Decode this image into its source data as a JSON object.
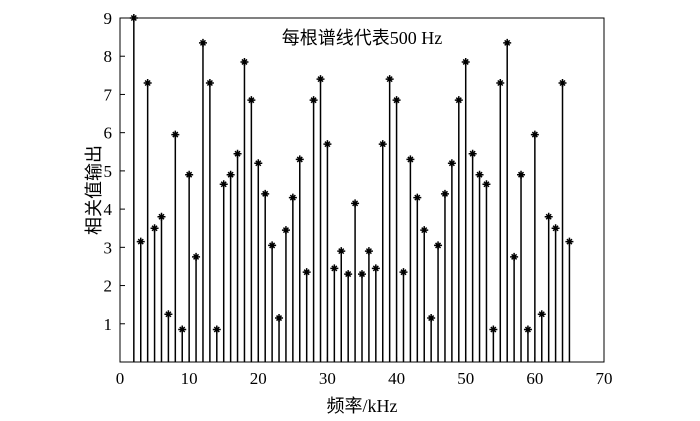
{
  "chart_data": {
    "type": "stem",
    "annotation": "每根谱线代表500 Hz",
    "x_label": "频率/kHz",
    "y_label": "相关值输出",
    "x": [
      2,
      3,
      4,
      5,
      6,
      7,
      8,
      9,
      10,
      11,
      12,
      13,
      14,
      15,
      16,
      17,
      18,
      19,
      20,
      21,
      22,
      23,
      24,
      25,
      26,
      27,
      28,
      29,
      30,
      31,
      32,
      33,
      34,
      35,
      36,
      37,
      38,
      39,
      40,
      41,
      42,
      43,
      44,
      45,
      46,
      47,
      48,
      49,
      50,
      51,
      52,
      53,
      54,
      55,
      56,
      57,
      58,
      59,
      60,
      61,
      62,
      63,
      64,
      65
    ],
    "values": [
      9.0,
      3.15,
      7.3,
      3.5,
      3.8,
      1.25,
      5.95,
      0.85,
      4.9,
      2.75,
      8.35,
      7.3,
      0.85,
      4.65,
      4.9,
      5.45,
      7.85,
      6.85,
      5.2,
      4.4,
      3.05,
      1.15,
      3.45,
      4.3,
      5.3,
      2.35,
      6.85,
      7.4,
      5.7,
      2.45,
      2.9,
      2.3,
      4.15,
      2.3,
      2.9,
      2.45,
      5.7,
      7.4,
      6.85,
      2.35,
      5.3,
      4.3,
      3.45,
      1.15,
      3.05,
      4.4,
      5.2,
      6.85,
      7.85,
      5.45,
      4.9,
      4.65,
      0.85,
      7.3,
      8.35,
      2.75,
      4.9,
      0.85,
      5.95,
      1.25,
      3.8,
      3.5,
      7.3,
      3.15
    ],
    "color": "#000000",
    "xlim": [
      0,
      70
    ],
    "xticks": [
      0,
      10,
      20,
      30,
      40,
      50,
      60,
      70
    ],
    "ylim": [
      0,
      9
    ],
    "yticks": [
      1,
      2,
      3,
      4,
      5,
      6,
      7,
      8,
      9
    ]
  }
}
